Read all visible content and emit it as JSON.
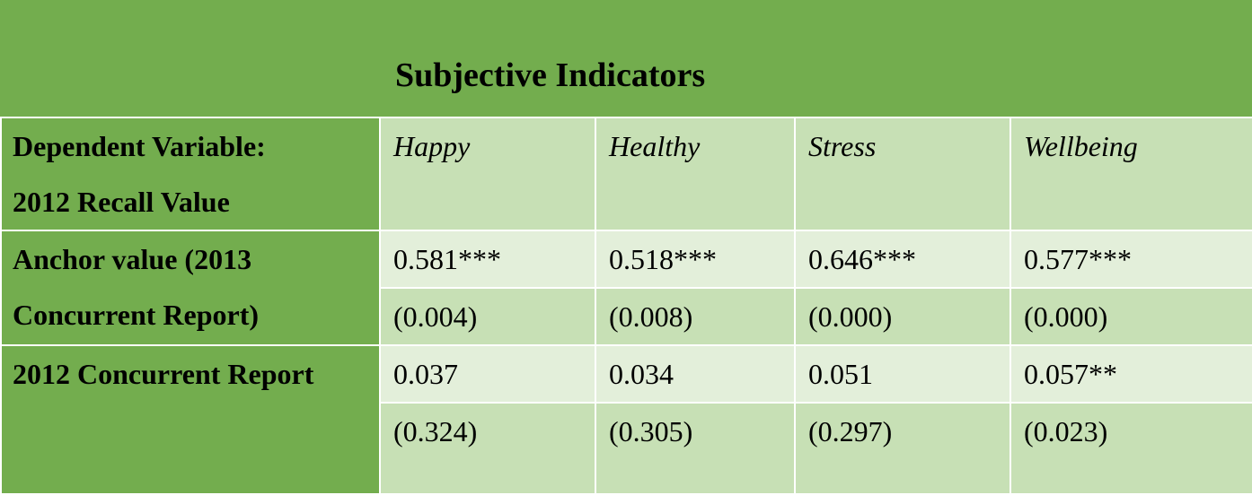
{
  "table": {
    "title": "Subjective Indicators",
    "row_label_header": [
      "Dependent Variable:",
      "2012 Recall Value"
    ],
    "columns": [
      "Happy",
      "Healthy",
      "Stress",
      "Wellbeing"
    ],
    "rows": [
      {
        "label": [
          "Anchor value (2013",
          "Concurrent Report)"
        ],
        "estimates": [
          "0.581***",
          "0.518***",
          "0.646***",
          "0.577***"
        ],
        "std_errors": [
          "(0.004)",
          "(0.008)",
          "(0.000)",
          "(0.000)"
        ]
      },
      {
        "label": [
          "2012 Concurrent Report"
        ],
        "estimates": [
          "0.037",
          "0.034",
          "0.051",
          "0.057**"
        ],
        "std_errors": [
          "(0.324)",
          "(0.305)",
          "(0.297)",
          "(0.023)"
        ]
      }
    ]
  },
  "colors": {
    "dark_green": "#73ad4e",
    "mid_green": "#c7e0b5",
    "light_green": "#e3efda",
    "divider": "#ffffff"
  }
}
